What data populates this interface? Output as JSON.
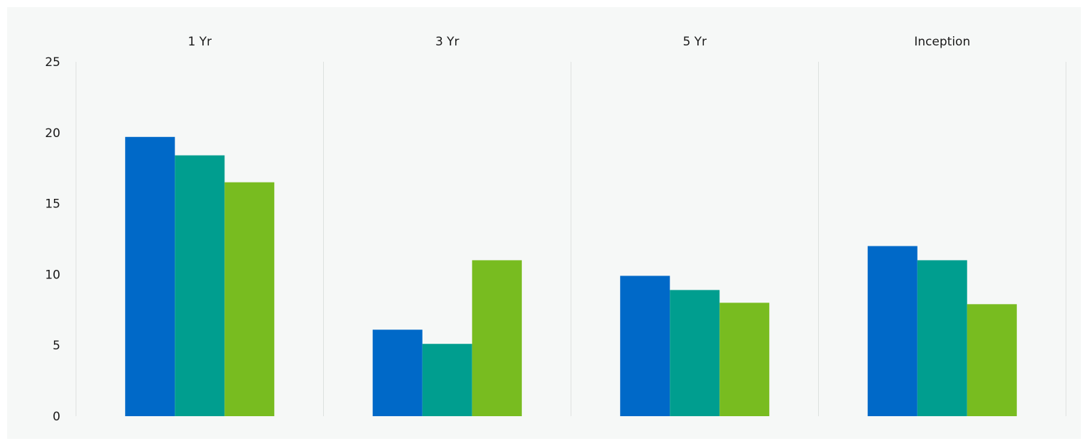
{
  "chart_data": {
    "type": "bar",
    "categories": [
      "1 Yr",
      "3 Yr",
      "5 Yr",
      "Inception"
    ],
    "series": [
      {
        "values": [
          19.7,
          6.1,
          9.9,
          12.0
        ],
        "color": "#0069c8"
      },
      {
        "values": [
          18.4,
          5.1,
          8.9,
          11.0
        ],
        "color": "#009e8f"
      },
      {
        "values": [
          16.5,
          11.0,
          8.0,
          7.9
        ],
        "color": "#78bc20"
      }
    ],
    "yticks": [
      0,
      5,
      10,
      15,
      20,
      25
    ],
    "ylim": [
      0,
      25
    ],
    "grid": "vertical separators between categories",
    "category_label_position": "top",
    "title": "",
    "xlabel": "",
    "ylabel": ""
  }
}
